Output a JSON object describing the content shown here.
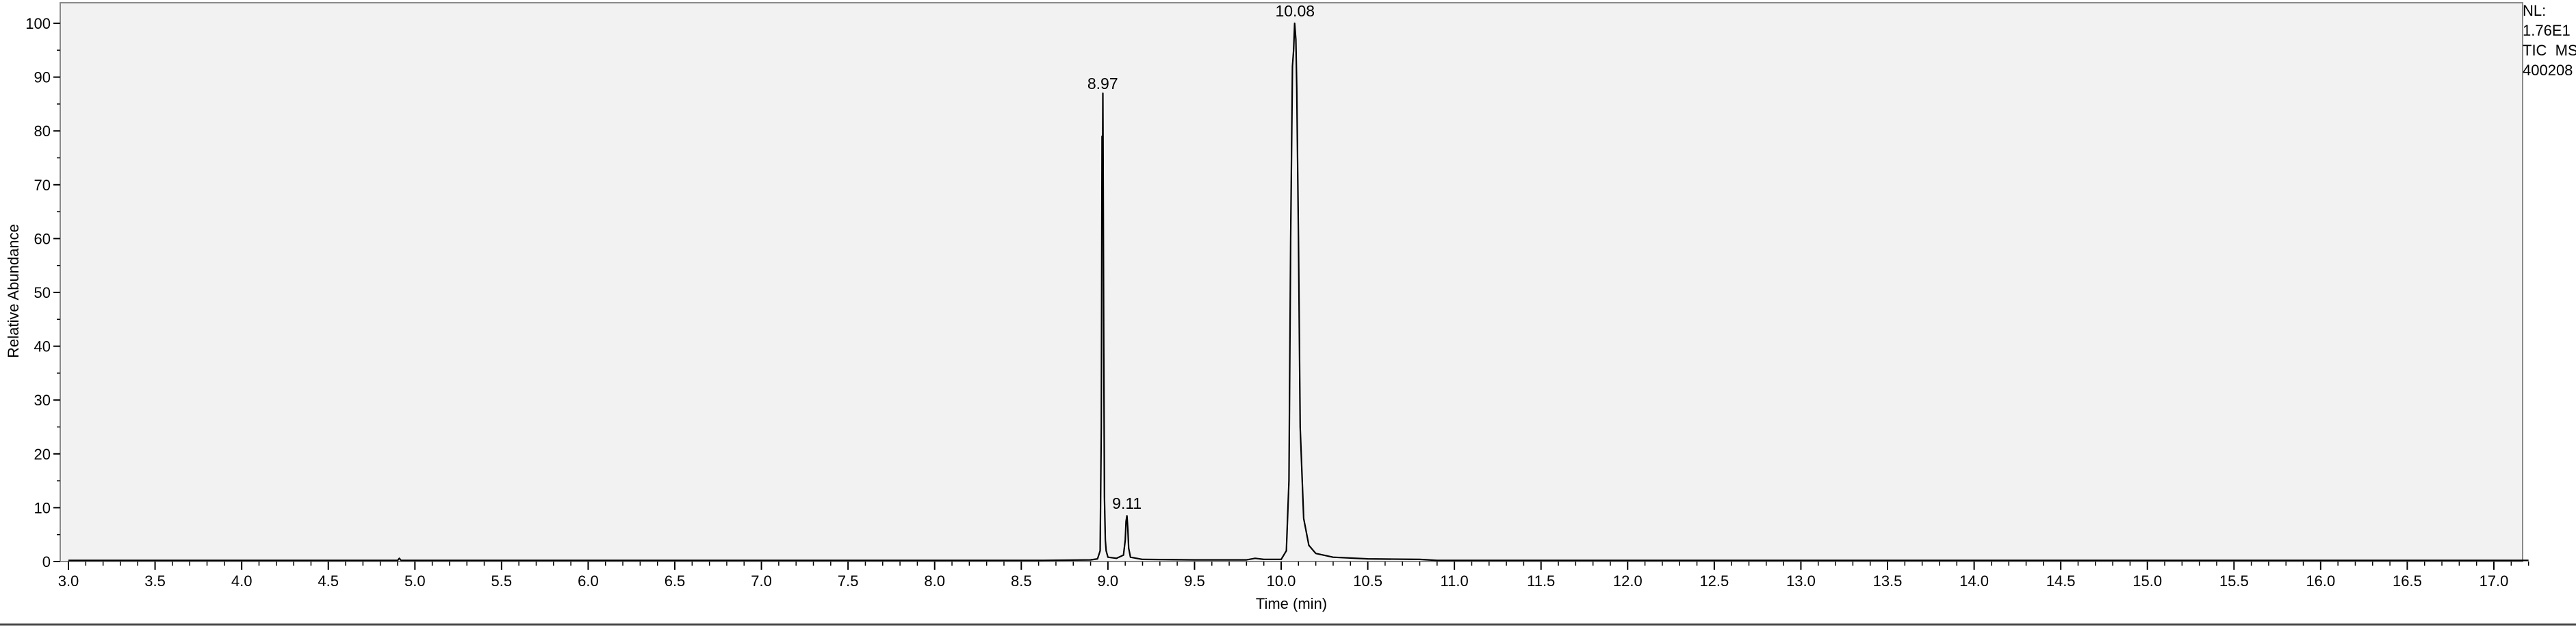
{
  "chart_data": {
    "type": "line",
    "title": "",
    "xlabel": "Time (min)",
    "ylabel": "Relative Abundance",
    "xlim": [
      3.0,
      17.2
    ],
    "ylim": [
      0,
      102
    ],
    "x_ticks": [
      "3.0",
      "3.5",
      "4.0",
      "4.5",
      "5.0",
      "5.5",
      "6.0",
      "6.5",
      "7.0",
      "7.5",
      "8.0",
      "8.5",
      "9.0",
      "9.5",
      "10.0",
      "10.5",
      "11.0",
      "11.5",
      "12.0",
      "12.5",
      "13.0",
      "13.5",
      "14.0",
      "14.5",
      "15.0",
      "15.5",
      "16.0",
      "16.5",
      "17.0"
    ],
    "y_ticks": [
      "0",
      "10",
      "20",
      "30",
      "40",
      "50",
      "60",
      "70",
      "80",
      "90",
      "100"
    ],
    "grid": false,
    "background": "#f2f2f2",
    "line_color": "#000000",
    "peak_labels": [
      {
        "x": 8.97,
        "y": 86.5,
        "text": "8.97"
      },
      {
        "x": 9.11,
        "y": 8.5,
        "text": "9.11"
      },
      {
        "x": 10.08,
        "y": 100,
        "text": "10.08"
      }
    ],
    "series": [
      {
        "x": [
          3.0,
          4.9,
          4.91,
          4.92,
          8.6,
          8.9,
          8.94,
          8.955,
          8.962,
          8.966,
          8.969,
          8.971,
          8.973,
          8.976,
          8.98,
          8.985,
          8.99,
          9.0,
          9.05,
          9.09,
          9.1,
          9.105,
          9.11,
          9.115,
          9.12,
          9.13,
          9.2,
          9.5,
          9.8,
          9.85,
          9.9,
          10.0,
          10.03,
          10.045,
          10.055,
          10.065,
          10.072,
          10.078,
          10.08,
          10.085,
          10.09,
          10.1,
          10.11,
          10.13,
          10.16,
          10.2,
          10.3,
          10.5,
          10.8,
          10.9,
          17.2
        ],
        "y": [
          0.2,
          0.2,
          0.6,
          0.2,
          0.2,
          0.3,
          0.5,
          2,
          25,
          79,
          71,
          87,
          70,
          40,
          12,
          4,
          2,
          0.8,
          0.6,
          1.2,
          4,
          7.5,
          8.5,
          6,
          2.5,
          0.8,
          0.4,
          0.3,
          0.3,
          0.6,
          0.4,
          0.4,
          2,
          15,
          60,
          92,
          95,
          100,
          99,
          97,
          88,
          60,
          25,
          8,
          3,
          1.5,
          0.8,
          0.5,
          0.4,
          0.2,
          0.2
        ]
      }
    ]
  },
  "info": {
    "nl_label": "NL:",
    "nl_value": "1.76E1",
    "scan_type": "TIC  MS",
    "file_id": "400208"
  }
}
